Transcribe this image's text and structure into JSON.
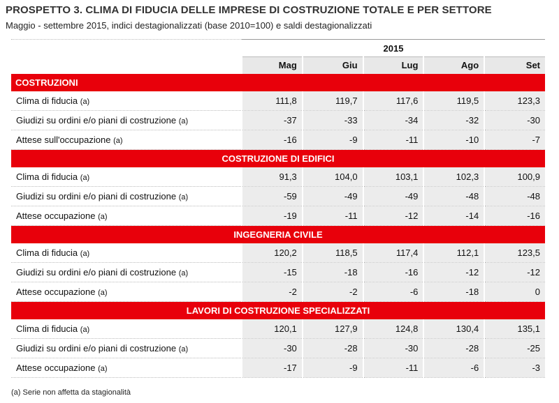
{
  "header": {
    "title": "PROSPETTO 3. CLIMA DI FIDUCIA DELLE IMPRESE DI COSTRUZIONE TOTALE E PER SETTORE",
    "subtitle": "Maggio - settembre 2015, indici destagionalizzati (base 2010=100) e saldi destagionalizzati"
  },
  "table": {
    "year": "2015",
    "months": [
      "Mag",
      "Giu",
      "Lug",
      "Ago",
      "Set"
    ],
    "sections": [
      {
        "title": "COSTRUZIONI",
        "rows": [
          {
            "label": "Clima di fiducia",
            "note": "(a)",
            "values": [
              "111,8",
              "119,7",
              "117,6",
              "119,5",
              "123,3"
            ]
          },
          {
            "label": "Giudizi su ordini e/o piani di costruzione",
            "note": "(a)",
            "values": [
              "-37",
              "-33",
              "-34",
              "-32",
              "-30"
            ]
          },
          {
            "label": "Attese sull'occupazione",
            "note": "(a)",
            "values": [
              "-16",
              "-9",
              "-11",
              "-10",
              "-7"
            ]
          }
        ]
      },
      {
        "title": "COSTRUZIONE DI EDIFICI",
        "rows": [
          {
            "label": "Clima di fiducia",
            "note": "(a)",
            "values": [
              "91,3",
              "104,0",
              "103,1",
              "102,3",
              "100,9"
            ]
          },
          {
            "label": "Giudizi su ordini e/o piani di costruzione",
            "note": "(a)",
            "values": [
              "-59",
              "-49",
              "-49",
              "-48",
              "-48"
            ]
          },
          {
            "label": "Attese occupazione",
            "note": "(a)",
            "values": [
              "-19",
              "-11",
              "-12",
              "-14",
              "-16"
            ]
          }
        ]
      },
      {
        "title": "INGEGNERIA CIVILE",
        "rows": [
          {
            "label": "Clima di fiducia",
            "note": "(a)",
            "values": [
              "120,2",
              "118,5",
              "117,4",
              "112,1",
              "123,5"
            ]
          },
          {
            "label": "Giudizi su ordini e/o piani di costruzione",
            "note": "(a)",
            "values": [
              "-15",
              "-18",
              "-16",
              "-12",
              "-12"
            ]
          },
          {
            "label": "Attese occupazione",
            "note": "(a)",
            "values": [
              "-2",
              "-2",
              "-6",
              "-18",
              "0"
            ]
          }
        ]
      },
      {
        "title": "LAVORI DI COSTRUZIONE SPECIALIZZATI",
        "rows": [
          {
            "label": "Clima di fiducia",
            "note": "(a)",
            "values": [
              "120,1",
              "127,9",
              "124,8",
              "130,4",
              "135,1"
            ]
          },
          {
            "label": "Giudizi su ordini e/o piani di costruzione",
            "note": "(a)",
            "values": [
              "-30",
              "-28",
              "-30",
              "-28",
              "-25"
            ]
          },
          {
            "label": "Attese occupazione",
            "note": "(a)",
            "values": [
              "-17",
              "-9",
              "-11",
              "-6",
              "-3"
            ]
          }
        ]
      }
    ]
  },
  "footnote": "(a) Serie non affetta da stagionalità",
  "colors": {
    "section_band": "#e8000b",
    "cell_fill": "#ececec"
  }
}
